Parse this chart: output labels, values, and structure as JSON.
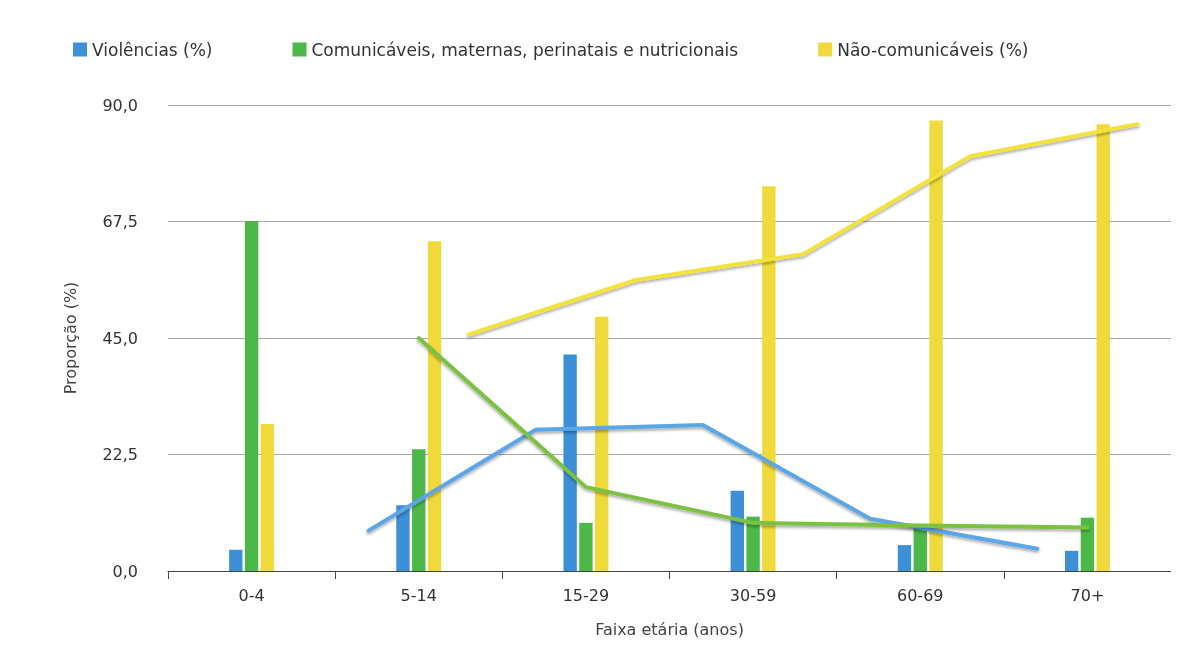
{
  "chart_data": {
    "type": "bar",
    "xlabel": "Faixa etária (anos)",
    "ylabel": "Proporção (%)",
    "categories": [
      "0-4",
      "5-14",
      "15-29",
      "30-59",
      "60-69",
      "70+"
    ],
    "ylim": [
      0,
      90
    ],
    "yticks": [
      {
        "value": 0,
        "label": "0,0"
      },
      {
        "value": 22.5,
        "label": "22,5"
      },
      {
        "value": 45,
        "label": "45,0"
      },
      {
        "value": 67.5,
        "label": "67,5"
      },
      {
        "value": 90,
        "label": "90,0"
      }
    ],
    "grid": "y",
    "legend": "top left",
    "series": [
      {
        "name": "Violências (%)",
        "color": "#3d8fd6",
        "values": [
          4.1,
          12.7,
          41.8,
          15.5,
          5.0,
          3.9
        ]
      },
      {
        "name": "Comunicáveis, maternas, perinatais e nutricionais",
        "color": "#4cb848",
        "values": [
          67.6,
          23.5,
          9.3,
          10.5,
          8.5,
          10.3
        ]
      },
      {
        "name": "Não-comunicáveis (%)",
        "color": "#f0d93a",
        "values": [
          28.4,
          63.7,
          49.1,
          74.3,
          87.0,
          86.3
        ]
      },
      {
        "type": "line",
        "color": "#5aa6e6",
        "x": [
          "5-14",
          "15-29",
          "30-59",
          "60-69",
          "70+"
        ],
        "values": [
          7.8,
          27.3,
          28.2,
          10.1,
          4.3
        ]
      },
      {
        "type": "line",
        "color": "#7cc242",
        "x": [
          "5-14",
          "15-29",
          "30-59",
          "60-69",
          "70+"
        ],
        "values": [
          45.0,
          16.2,
          9.3,
          8.8,
          8.4
        ]
      },
      {
        "type": "line",
        "color": "#f2e23a",
        "x": [
          "5-14",
          "15-29",
          "30-59",
          "60-69",
          "70+"
        ],
        "values": [
          45.7,
          56.2,
          61.2,
          80.1,
          86.3
        ]
      }
    ],
    "marker": "none",
    "line_style": "solid"
  }
}
